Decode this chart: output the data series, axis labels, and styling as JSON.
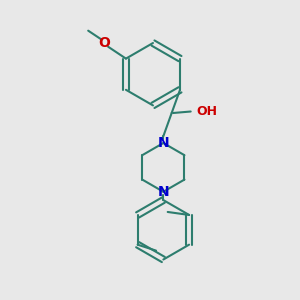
{
  "background_color": "#e8e8e8",
  "bond_color": "#2d7d6e",
  "nitrogen_color": "#0000cd",
  "oxygen_color": "#cc0000",
  "bond_width": 1.5,
  "font_size": 9,
  "figsize": [
    3.0,
    3.0
  ],
  "dpi": 100,
  "xlim": [
    0,
    10
  ],
  "ylim": [
    0,
    10
  ]
}
